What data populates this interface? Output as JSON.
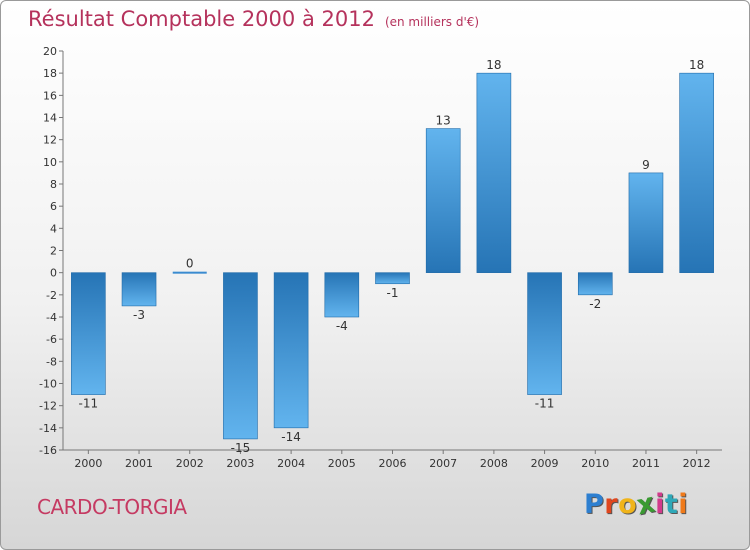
{
  "header": {
    "title": "Résultat Comptable 2000 à 2012",
    "subtitle": "(en milliers d'€)"
  },
  "footer": {
    "town": "CARDO-TORGIA",
    "logo": [
      "P",
      "r",
      "o",
      "x",
      "i",
      "t",
      "i"
    ]
  },
  "colors": {
    "title": "#b5325c",
    "bar_light": "#60b2ec",
    "bar_dark": "#2776b8"
  },
  "chart_data": {
    "type": "bar",
    "title": "Résultat Comptable 2000 à 2012",
    "subtitle": "(en milliers d'€)",
    "xlabel": "",
    "ylabel": "",
    "categories": [
      "2000",
      "2001",
      "2002",
      "2003",
      "2004",
      "2005",
      "2006",
      "2007",
      "2008",
      "2009",
      "2010",
      "2011",
      "2012"
    ],
    "values": [
      -11,
      -3,
      0,
      -15,
      -14,
      -4,
      -1,
      13,
      18,
      -11,
      -2,
      9,
      18
    ],
    "value_labels": [
      "-11",
      "-3",
      "0",
      "-15",
      "-14",
      "-4",
      "-1",
      "13",
      "18",
      "-11",
      "-2",
      "9",
      "18"
    ],
    "ylim": [
      -16,
      20
    ],
    "yticks": [
      -16,
      -14,
      -12,
      -10,
      -8,
      -6,
      -4,
      -2,
      0,
      2,
      4,
      6,
      8,
      10,
      12,
      14,
      16,
      18,
      20
    ],
    "ytick_labels": [
      "-16",
      "-14",
      "-12",
      "-10",
      "-8",
      "-6",
      "-4",
      "-2",
      "0",
      "2",
      "4",
      "6",
      "8",
      "10",
      "12",
      "14",
      "16",
      "18",
      "20"
    ],
    "grid": false,
    "legend": "none"
  }
}
